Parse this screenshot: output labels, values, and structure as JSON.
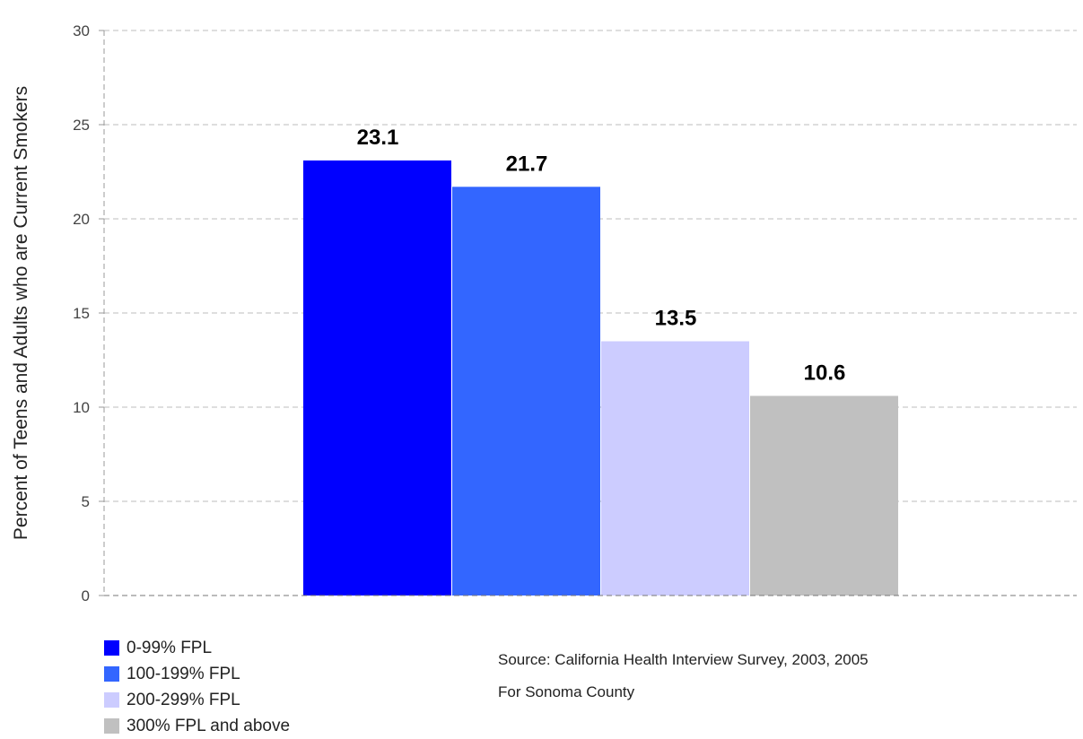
{
  "chart_data": {
    "type": "bar",
    "title": "",
    "xlabel": "",
    "ylabel": "Percent of Teens and Adults who are Current Smokers",
    "ylim": [
      0,
      30
    ],
    "yticks": [
      0,
      5,
      10,
      15,
      20,
      25,
      30
    ],
    "grid": true,
    "legend_position": "bottom-left",
    "series": [
      {
        "name": "0-99% FPL",
        "value": 23.1,
        "label": "23.1",
        "color": "#0000ff"
      },
      {
        "name": "100-199% FPL",
        "value": 21.7,
        "label": "21.7",
        "color": "#3366ff"
      },
      {
        "name": "200-299% FPL",
        "value": 13.5,
        "label": "13.5",
        "color": "#ccccff"
      },
      {
        "name": "300% FPL and above",
        "value": 10.6,
        "label": "10.6",
        "color": "#c0c0c0"
      }
    ]
  },
  "notes": {
    "source": "Source: California Health Interview Survey, 2003, 2005",
    "county": "For Sonoma County"
  }
}
